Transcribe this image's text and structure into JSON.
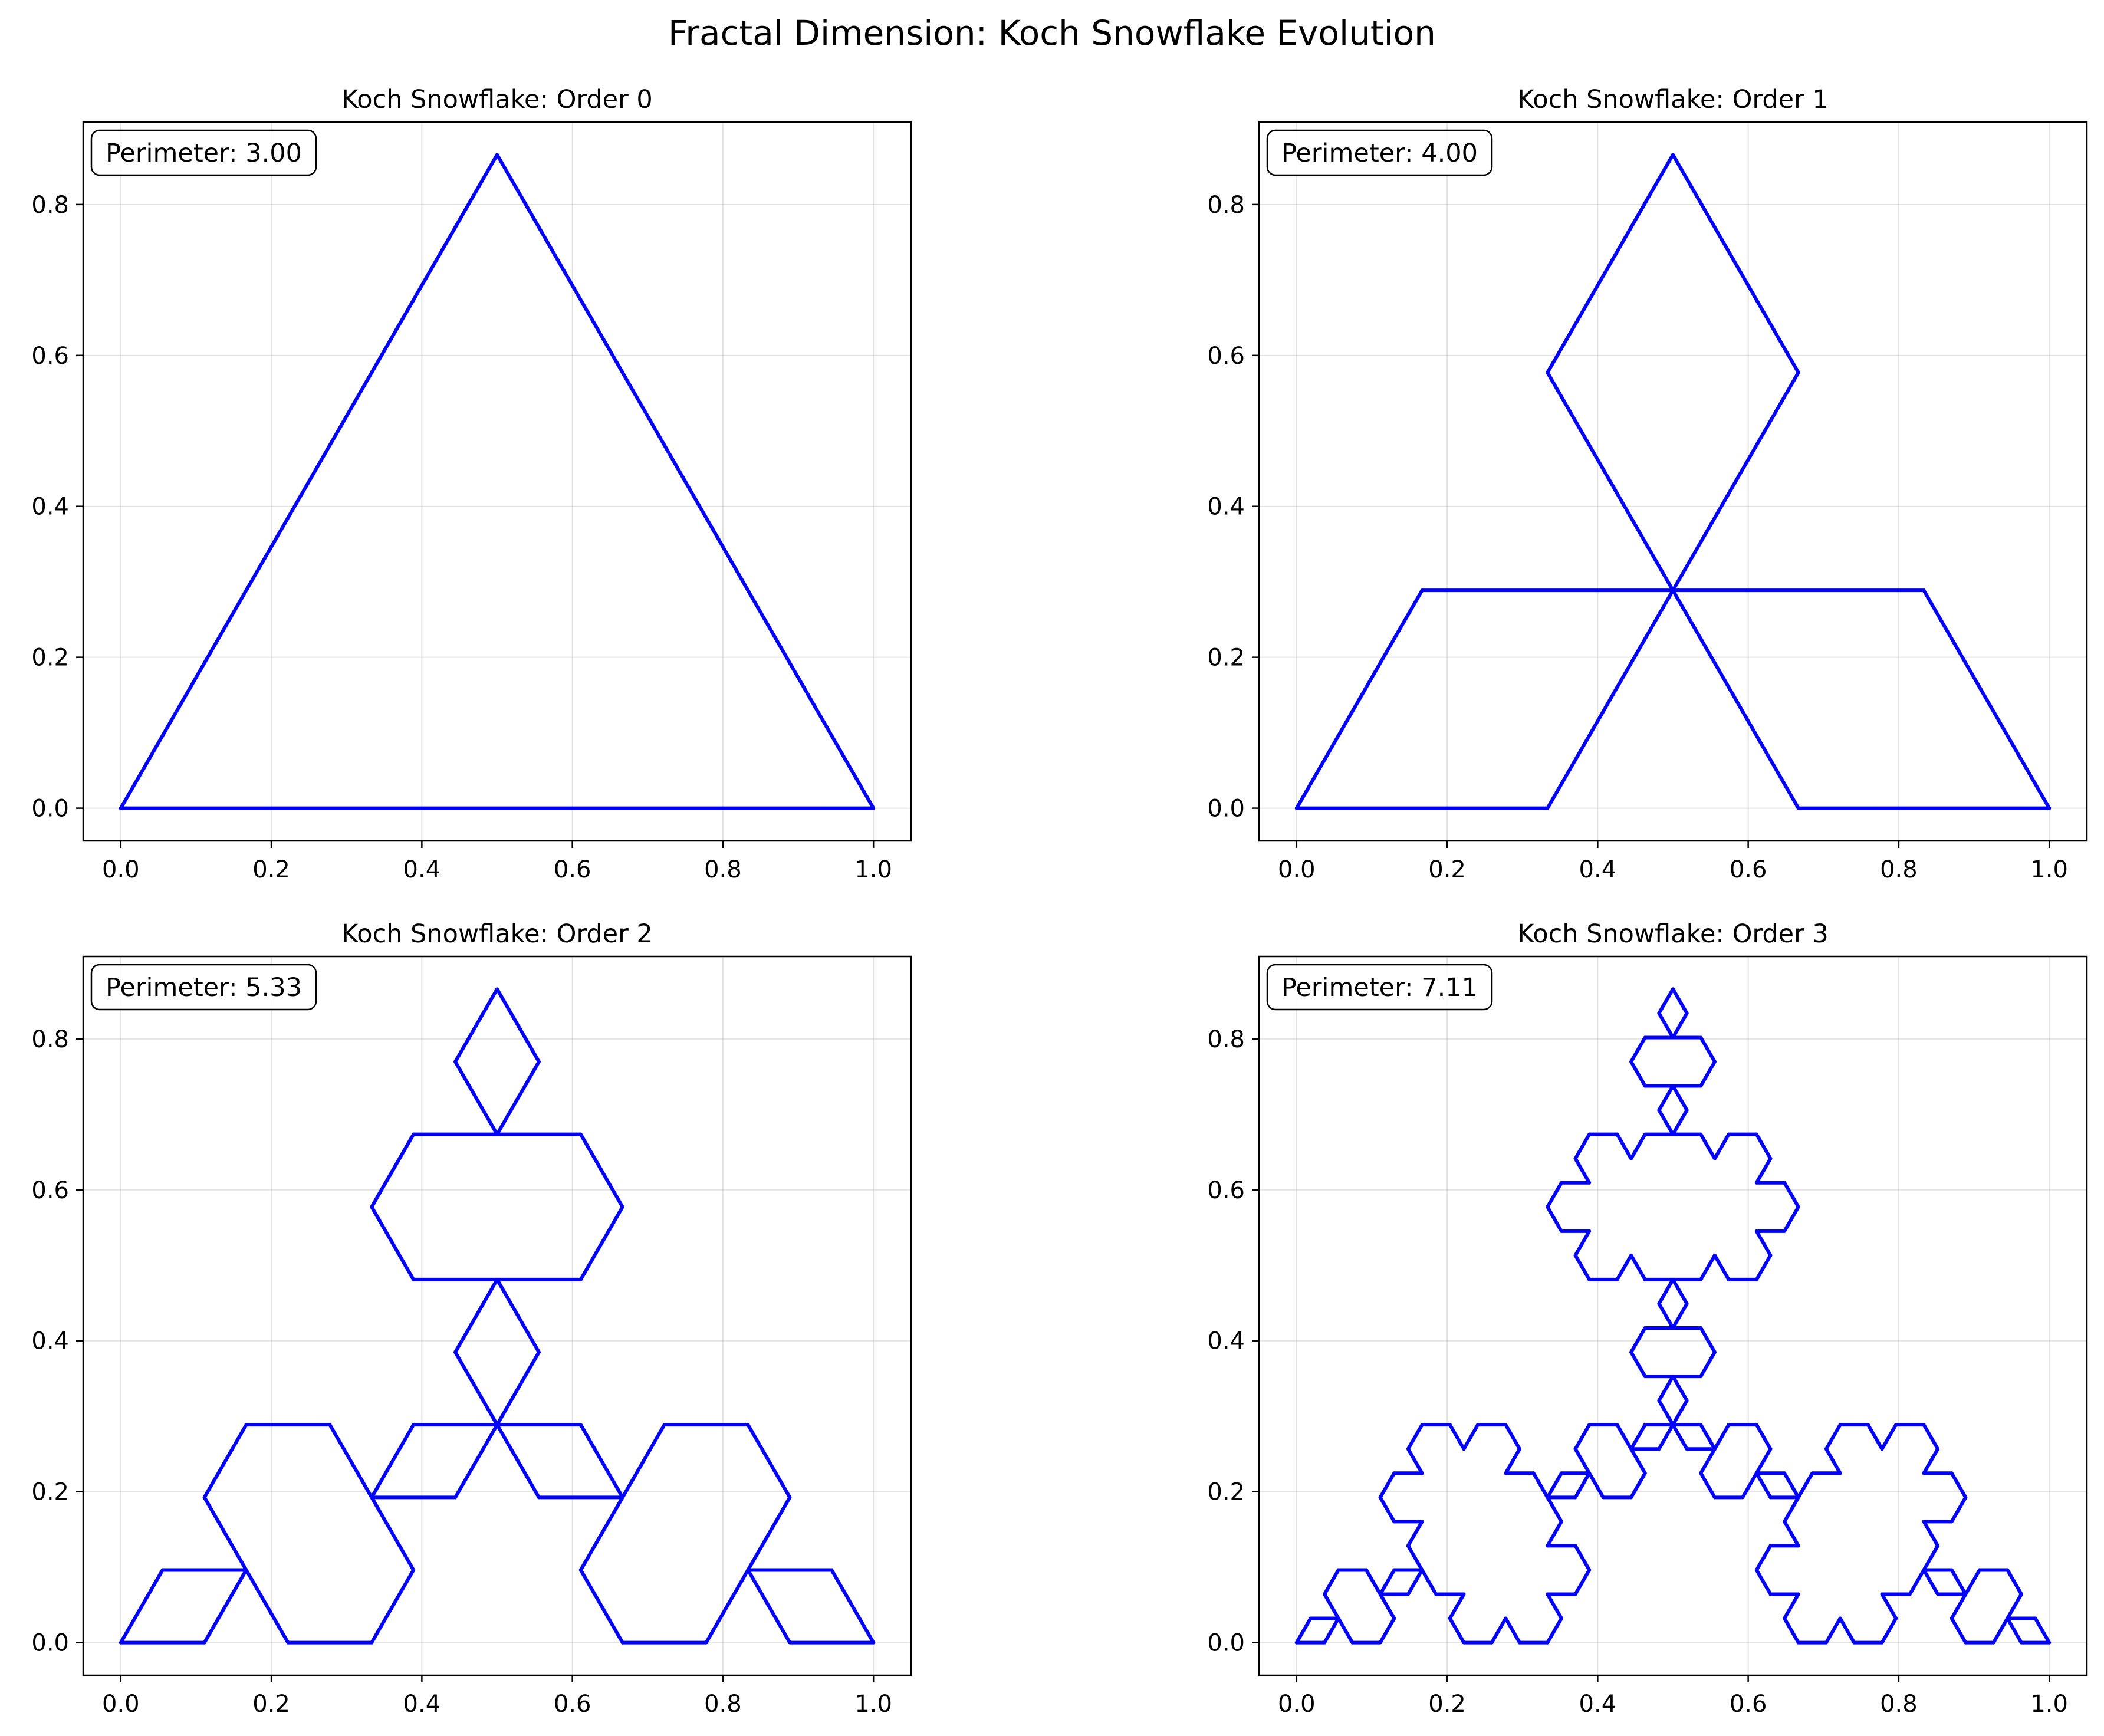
{
  "figure": {
    "title": "Fractal Dimension: Koch Snowflake Evolution"
  },
  "chart_data": [
    {
      "type": "line",
      "order": 0,
      "title": "Koch Snowflake: Order 0",
      "annotation": "Perimeter: 3.00",
      "xlabel": "",
      "ylabel": "",
      "xlim": [
        -0.05,
        1.05
      ],
      "ylim": [
        -0.0433,
        0.9093
      ],
      "xticks": [
        0.0,
        0.2,
        0.4,
        0.6,
        0.8,
        1.0
      ],
      "yticks": [
        0.0,
        0.2,
        0.4,
        0.6,
        0.8
      ],
      "grid": true,
      "line_color": "#0000ff"
    },
    {
      "type": "line",
      "order": 1,
      "title": "Koch Snowflake: Order 1",
      "annotation": "Perimeter: 4.00",
      "xlabel": "",
      "ylabel": "",
      "xlim": [
        -0.05,
        1.05
      ],
      "ylim": [
        -0.0433,
        0.9093
      ],
      "xticks": [
        0.0,
        0.2,
        0.4,
        0.6,
        0.8,
        1.0
      ],
      "yticks": [
        0.0,
        0.2,
        0.4,
        0.6,
        0.8
      ],
      "grid": true,
      "line_color": "#0000ff"
    },
    {
      "type": "line",
      "order": 2,
      "title": "Koch Snowflake: Order 2",
      "annotation": "Perimeter: 5.33",
      "xlabel": "",
      "ylabel": "",
      "xlim": [
        -0.05,
        1.05
      ],
      "ylim": [
        -0.0433,
        0.9093
      ],
      "xticks": [
        0.0,
        0.2,
        0.4,
        0.6,
        0.8,
        1.0
      ],
      "yticks": [
        0.0,
        0.2,
        0.4,
        0.6,
        0.8
      ],
      "grid": true,
      "line_color": "#0000ff"
    },
    {
      "type": "line",
      "order": 3,
      "title": "Koch Snowflake: Order 3",
      "annotation": "Perimeter: 7.11",
      "xlabel": "",
      "ylabel": "",
      "xlim": [
        -0.05,
        1.05
      ],
      "ylim": [
        -0.0433,
        0.9093
      ],
      "xticks": [
        0.0,
        0.2,
        0.4,
        0.6,
        0.8,
        1.0
      ],
      "yticks": [
        0.0,
        0.2,
        0.4,
        0.6,
        0.8
      ],
      "grid": true,
      "line_color": "#0000ff"
    }
  ]
}
